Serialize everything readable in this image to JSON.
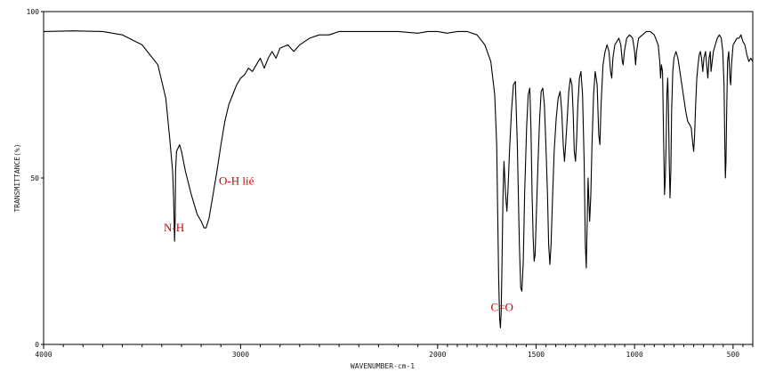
{
  "chart_data": {
    "type": "line",
    "title": "",
    "xlabel": "WAVENUMBER-cm-1",
    "ylabel": "TRANSMITTANCE(%)",
    "xlim": [
      4000,
      400
    ],
    "ylim": [
      0,
      100
    ],
    "x_reversed": true,
    "x_ticks": [
      4000,
      3000,
      2000,
      1500,
      1000,
      500
    ],
    "x_tick_labels": [
      "4000",
      "3000",
      "2000",
      "1500",
      "1000",
      "500"
    ],
    "y_ticks": [
      0,
      50,
      100
    ],
    "y_tick_labels": [
      "0",
      "50",
      "100"
    ],
    "grid": false,
    "line_color": "#000000",
    "annotation_color": "#cc0000",
    "series": [
      {
        "points": [
          [
            4000,
            94
          ],
          [
            3850,
            94.2
          ],
          [
            3700,
            94
          ],
          [
            3600,
            93
          ],
          [
            3500,
            90
          ],
          [
            3420,
            84
          ],
          [
            3380,
            74
          ],
          [
            3360,
            62
          ],
          [
            3345,
            52
          ],
          [
            3340,
            44
          ],
          [
            3338,
            38
          ],
          [
            3335,
            31
          ],
          [
            3332,
            38
          ],
          [
            3330,
            52
          ],
          [
            3325,
            58
          ],
          [
            3310,
            60
          ],
          [
            3300,
            58
          ],
          [
            3280,
            52
          ],
          [
            3250,
            45
          ],
          [
            3220,
            39
          ],
          [
            3200,
            37
          ],
          [
            3185,
            35
          ],
          [
            3175,
            35
          ],
          [
            3160,
            38
          ],
          [
            3140,
            45
          ],
          [
            3120,
            52
          ],
          [
            3100,
            60
          ],
          [
            3080,
            67
          ],
          [
            3060,
            72
          ],
          [
            3040,
            75
          ],
          [
            3020,
            78
          ],
          [
            3000,
            80
          ],
          [
            2980,
            81
          ],
          [
            2960,
            83
          ],
          [
            2940,
            82
          ],
          [
            2920,
            84
          ],
          [
            2900,
            86
          ],
          [
            2880,
            83
          ],
          [
            2860,
            86
          ],
          [
            2840,
            88
          ],
          [
            2820,
            86
          ],
          [
            2800,
            89
          ],
          [
            2760,
            90
          ],
          [
            2730,
            88
          ],
          [
            2700,
            90
          ],
          [
            2650,
            92
          ],
          [
            2600,
            93
          ],
          [
            2550,
            93
          ],
          [
            2500,
            94
          ],
          [
            2400,
            94
          ],
          [
            2300,
            94
          ],
          [
            2200,
            94
          ],
          [
            2100,
            93.5
          ],
          [
            2050,
            94
          ],
          [
            2000,
            94
          ],
          [
            1950,
            93.5
          ],
          [
            1900,
            94
          ],
          [
            1850,
            94
          ],
          [
            1800,
            93
          ],
          [
            1760,
            90
          ],
          [
            1730,
            85
          ],
          [
            1710,
            75
          ],
          [
            1700,
            60
          ],
          [
            1695,
            40
          ],
          [
            1690,
            20
          ],
          [
            1685,
            8
          ],
          [
            1681,
            5
          ],
          [
            1677,
            10
          ],
          [
            1673,
            25
          ],
          [
            1668,
            45
          ],
          [
            1663,
            55
          ],
          [
            1655,
            45
          ],
          [
            1648,
            40
          ],
          [
            1642,
            47
          ],
          [
            1635,
            58
          ],
          [
            1625,
            70
          ],
          [
            1615,
            78
          ],
          [
            1605,
            79
          ],
          [
            1595,
            60
          ],
          [
            1585,
            30
          ],
          [
            1578,
            17
          ],
          [
            1572,
            16
          ],
          [
            1565,
            25
          ],
          [
            1558,
            45
          ],
          [
            1548,
            65
          ],
          [
            1540,
            75
          ],
          [
            1532,
            77
          ],
          [
            1526,
            65
          ],
          [
            1520,
            45
          ],
          [
            1515,
            32
          ],
          [
            1510,
            25
          ],
          [
            1505,
            27
          ],
          [
            1498,
            40
          ],
          [
            1490,
            55
          ],
          [
            1482,
            68
          ],
          [
            1474,
            76
          ],
          [
            1466,
            77
          ],
          [
            1458,
            72
          ],
          [
            1450,
            60
          ],
          [
            1442,
            45
          ],
          [
            1436,
            30
          ],
          [
            1430,
            24
          ],
          [
            1424,
            30
          ],
          [
            1416,
            45
          ],
          [
            1408,
            58
          ],
          [
            1398,
            68
          ],
          [
            1388,
            74
          ],
          [
            1378,
            76
          ],
          [
            1370,
            70
          ],
          [
            1362,
            60
          ],
          [
            1356,
            55
          ],
          [
            1350,
            60
          ],
          [
            1342,
            68
          ],
          [
            1334,
            76
          ],
          [
            1326,
            80
          ],
          [
            1318,
            78
          ],
          [
            1312,
            70
          ],
          [
            1306,
            58
          ],
          [
            1300,
            55
          ],
          [
            1294,
            62
          ],
          [
            1288,
            72
          ],
          [
            1280,
            80
          ],
          [
            1272,
            82
          ],
          [
            1264,
            75
          ],
          [
            1256,
            55
          ],
          [
            1250,
            30
          ],
          [
            1245,
            23
          ],
          [
            1240,
            38
          ],
          [
            1236,
            50
          ],
          [
            1232,
            43
          ],
          [
            1228,
            37
          ],
          [
            1222,
            45
          ],
          [
            1216,
            60
          ],
          [
            1208,
            75
          ],
          [
            1200,
            82
          ],
          [
            1190,
            78
          ],
          [
            1182,
            63
          ],
          [
            1176,
            60
          ],
          [
            1170,
            72
          ],
          [
            1160,
            84
          ],
          [
            1150,
            88
          ],
          [
            1140,
            90
          ],
          [
            1130,
            88
          ],
          [
            1122,
            82
          ],
          [
            1116,
            80
          ],
          [
            1110,
            86
          ],
          [
            1100,
            90
          ],
          [
            1090,
            91
          ],
          [
            1080,
            92
          ],
          [
            1070,
            90
          ],
          [
            1062,
            85
          ],
          [
            1058,
            84
          ],
          [
            1052,
            88
          ],
          [
            1040,
            92
          ],
          [
            1025,
            93
          ],
          [
            1010,
            92
          ],
          [
            1000,
            88
          ],
          [
            995,
            84
          ],
          [
            990,
            88
          ],
          [
            980,
            92
          ],
          [
            960,
            93
          ],
          [
            940,
            94
          ],
          [
            920,
            94
          ],
          [
            900,
            93
          ],
          [
            880,
            90
          ],
          [
            872,
            85
          ],
          [
            868,
            80
          ],
          [
            864,
            84
          ],
          [
            858,
            82
          ],
          [
            852,
            60
          ],
          [
            848,
            45
          ],
          [
            844,
            50
          ],
          [
            840,
            60
          ],
          [
            836,
            75
          ],
          [
            832,
            80
          ],
          [
            828,
            72
          ],
          [
            824,
            55
          ],
          [
            820,
            44
          ],
          [
            816,
            52
          ],
          [
            812,
            70
          ],
          [
            806,
            82
          ],
          [
            800,
            86
          ],
          [
            790,
            88
          ],
          [
            780,
            86
          ],
          [
            770,
            82
          ],
          [
            760,
            78
          ],
          [
            750,
            74
          ],
          [
            740,
            70
          ],
          [
            730,
            67
          ],
          [
            720,
            66
          ],
          [
            712,
            65
          ],
          [
            704,
            60
          ],
          [
            700,
            58
          ],
          [
            696,
            62
          ],
          [
            690,
            72
          ],
          [
            684,
            80
          ],
          [
            678,
            84
          ],
          [
            672,
            87
          ],
          [
            666,
            88
          ],
          [
            660,
            86
          ],
          [
            654,
            82
          ],
          [
            648,
            86
          ],
          [
            640,
            88
          ],
          [
            634,
            84
          ],
          [
            628,
            80
          ],
          [
            622,
            86
          ],
          [
            616,
            88
          ],
          [
            612,
            82
          ],
          [
            606,
            85
          ],
          [
            600,
            88
          ],
          [
            590,
            90
          ],
          [
            580,
            92
          ],
          [
            570,
            93
          ],
          [
            560,
            92
          ],
          [
            552,
            88
          ],
          [
            546,
            78
          ],
          [
            542,
            60
          ],
          [
            539,
            50
          ],
          [
            536,
            55
          ],
          [
            532,
            72
          ],
          [
            528,
            85
          ],
          [
            522,
            88
          ],
          [
            516,
            80
          ],
          [
            512,
            78
          ],
          [
            508,
            84
          ],
          [
            500,
            90
          ],
          [
            490,
            91
          ],
          [
            480,
            92
          ],
          [
            470,
            92
          ],
          [
            460,
            93
          ],
          [
            450,
            91
          ],
          [
            440,
            90
          ],
          [
            430,
            87
          ],
          [
            420,
            85
          ],
          [
            410,
            86
          ],
          [
            400,
            85
          ]
        ]
      }
    ],
    "annotations": [
      {
        "text": "N-H",
        "x": 3390,
        "y": 34
      },
      {
        "text": "O-H lié",
        "x": 3110,
        "y": 48
      },
      {
        "text": "C=O",
        "x": 1730,
        "y": 10
      }
    ]
  }
}
